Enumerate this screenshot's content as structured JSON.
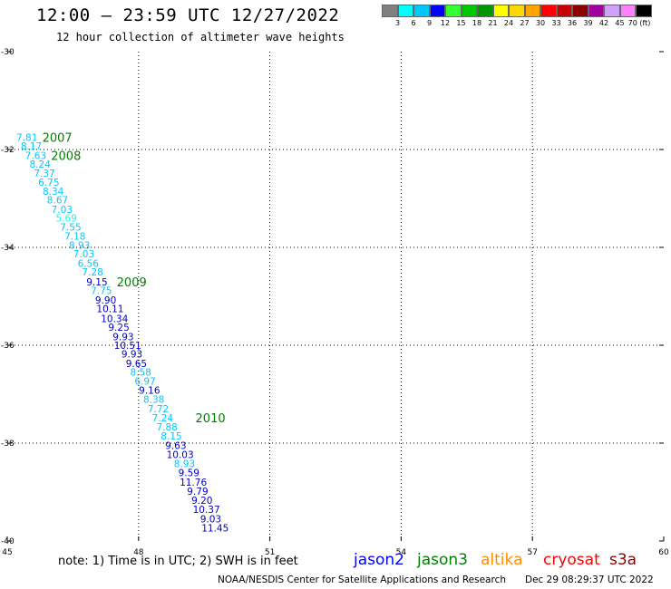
{
  "header": {
    "title": "12:00 – 23:59 UTC 12/27/2022",
    "subtitle": "12 hour collection of altimeter wave heights"
  },
  "legend": {
    "colors": [
      "#808080",
      "#00ffff",
      "#00c8ff",
      "#0000ff",
      "#33ff33",
      "#00c800",
      "#009600",
      "#ffff00",
      "#ffd700",
      "#ffa500",
      "#ff0000",
      "#c80000",
      "#8b0000",
      "#a000a0",
      "#d0a0ff",
      "#ff80ff",
      "#000000"
    ],
    "ticks": [
      "3",
      "6",
      "9",
      "12",
      "15",
      "18",
      "21",
      "24",
      "27",
      "30",
      "33",
      "36",
      "39",
      "42",
      "45",
      "70 (ft)"
    ]
  },
  "chart_data": {
    "type": "scatter",
    "xlim": [
      45,
      60
    ],
    "ylim": [
      -40,
      -30
    ],
    "x_ticks": [
      "45",
      "48",
      "51",
      "54",
      "57",
      "60"
    ],
    "y_ticks": [
      "-30",
      "-32",
      "-34",
      "-36",
      "-38",
      "-40"
    ],
    "grid": true,
    "points": [
      {
        "lon": 45.45,
        "lat": -31.75,
        "label": "7.81",
        "color": "#00c8ff"
      },
      {
        "lon": 45.55,
        "lat": -31.93,
        "label": "8.17",
        "color": "#00c8ff"
      },
      {
        "lon": 45.65,
        "lat": -32.12,
        "label": "7.63",
        "color": "#00c8ff"
      },
      {
        "lon": 45.75,
        "lat": -32.3,
        "label": "8.24",
        "color": "#00c8ff"
      },
      {
        "lon": 45.85,
        "lat": -32.48,
        "label": "7.37",
        "color": "#00c8ff"
      },
      {
        "lon": 45.95,
        "lat": -32.67,
        "label": "6.75",
        "color": "#00c8ff"
      },
      {
        "lon": 46.05,
        "lat": -32.85,
        "label": "8.34",
        "color": "#00c8ff"
      },
      {
        "lon": 46.15,
        "lat": -33.03,
        "label": "8.67",
        "color": "#00c8ff"
      },
      {
        "lon": 46.25,
        "lat": -33.22,
        "label": "7.03",
        "color": "#00c8ff"
      },
      {
        "lon": 46.35,
        "lat": -33.4,
        "label": "5.69",
        "color": "#00ffff"
      },
      {
        "lon": 46.45,
        "lat": -33.58,
        "label": "7.55",
        "color": "#00c8ff"
      },
      {
        "lon": 46.55,
        "lat": -33.77,
        "label": "7.18",
        "color": "#00c8ff"
      },
      {
        "lon": 46.65,
        "lat": -33.95,
        "label": "8.93",
        "color": "#00c8ff"
      },
      {
        "lon": 46.75,
        "lat": -34.13,
        "label": "7.03",
        "color": "#00c8ff"
      },
      {
        "lon": 46.85,
        "lat": -34.32,
        "label": "6.56",
        "color": "#00c8ff"
      },
      {
        "lon": 46.95,
        "lat": -34.5,
        "label": "7.28",
        "color": "#00c8ff"
      },
      {
        "lon": 47.05,
        "lat": -34.7,
        "label": "9.15",
        "color": "#0000c8"
      },
      {
        "lon": 47.15,
        "lat": -34.88,
        "label": "7.75",
        "color": "#00c8ff"
      },
      {
        "lon": 47.25,
        "lat": -35.07,
        "label": "9.90",
        "color": "#0000c8"
      },
      {
        "lon": 47.35,
        "lat": -35.25,
        "label": "10.11",
        "color": "#0000c8"
      },
      {
        "lon": 47.45,
        "lat": -35.45,
        "label": "10.34",
        "color": "#0000c8"
      },
      {
        "lon": 47.55,
        "lat": -35.63,
        "label": "9.25",
        "color": "#0000c8"
      },
      {
        "lon": 47.65,
        "lat": -35.82,
        "label": "9.93",
        "color": "#0000c8"
      },
      {
        "lon": 47.75,
        "lat": -36.0,
        "label": "10.51",
        "color": "#0000c8"
      },
      {
        "lon": 47.85,
        "lat": -36.18,
        "label": "9.93",
        "color": "#0000c8"
      },
      {
        "lon": 47.95,
        "lat": -36.37,
        "label": "9.65",
        "color": "#0000c8"
      },
      {
        "lon": 48.05,
        "lat": -36.55,
        "label": "8.58",
        "color": "#00c8ff"
      },
      {
        "lon": 48.15,
        "lat": -36.73,
        "label": "6.97",
        "color": "#00c8ff"
      },
      {
        "lon": 48.25,
        "lat": -36.92,
        "label": "9.16",
        "color": "#0000c8"
      },
      {
        "lon": 48.35,
        "lat": -37.1,
        "label": "8.38",
        "color": "#00c8ff"
      },
      {
        "lon": 48.45,
        "lat": -37.3,
        "label": "7.72",
        "color": "#00c8ff"
      },
      {
        "lon": 48.55,
        "lat": -37.48,
        "label": "7.24",
        "color": "#00c8ff"
      },
      {
        "lon": 48.65,
        "lat": -37.67,
        "label": "7.88",
        "color": "#00c8ff"
      },
      {
        "lon": 48.75,
        "lat": -37.85,
        "label": "8.15",
        "color": "#00c8ff"
      },
      {
        "lon": 48.85,
        "lat": -38.05,
        "label": "9.63",
        "color": "#0000c8"
      },
      {
        "lon": 48.95,
        "lat": -38.23,
        "label": "10.03",
        "color": "#0000c8"
      },
      {
        "lon": 49.05,
        "lat": -38.42,
        "label": "8.93",
        "color": "#00c8ff"
      },
      {
        "lon": 49.15,
        "lat": -38.6,
        "label": "9.59",
        "color": "#0000c8"
      },
      {
        "lon": 49.25,
        "lat": -38.8,
        "label": "11.76",
        "color": "#0000c8"
      },
      {
        "lon": 49.35,
        "lat": -38.98,
        "label": "9.79",
        "color": "#0000c8"
      },
      {
        "lon": 49.45,
        "lat": -39.17,
        "label": "9.20",
        "color": "#0000c8"
      },
      {
        "lon": 49.55,
        "lat": -39.35,
        "label": "10.37",
        "color": "#0000c8"
      },
      {
        "lon": 49.65,
        "lat": -39.55,
        "label": "9.03",
        "color": "#0000c8"
      },
      {
        "lon": 49.75,
        "lat": -39.73,
        "label": "11.45",
        "color": "#0000c8"
      }
    ],
    "time_labels": [
      {
        "lon": 45.8,
        "lat": -31.75,
        "label": "2007"
      },
      {
        "lon": 46.0,
        "lat": -32.12,
        "label": "2008"
      },
      {
        "lon": 47.5,
        "lat": -34.7,
        "label": "2009"
      },
      {
        "lon": 49.3,
        "lat": -37.48,
        "label": "2010"
      }
    ],
    "time_label_color": "#008000"
  },
  "footer": {
    "note": "note:  1) Time is in UTC;  2) SWH is in feet",
    "satellites": [
      {
        "name": "jason2",
        "color": "#0000ff"
      },
      {
        "name": "jason3",
        "color": "#008000"
      },
      {
        "name": "altika",
        "color": "#ff8c00"
      },
      {
        "name": "cryosat",
        "color": "#ff0000"
      },
      {
        "name": "s3a",
        "color": "#8b0000"
      }
    ],
    "credit": "NOAA/NESDIS Center for Satellite Applications and Research",
    "timestamp": "Dec 29 08:29:37 UTC 2022"
  }
}
